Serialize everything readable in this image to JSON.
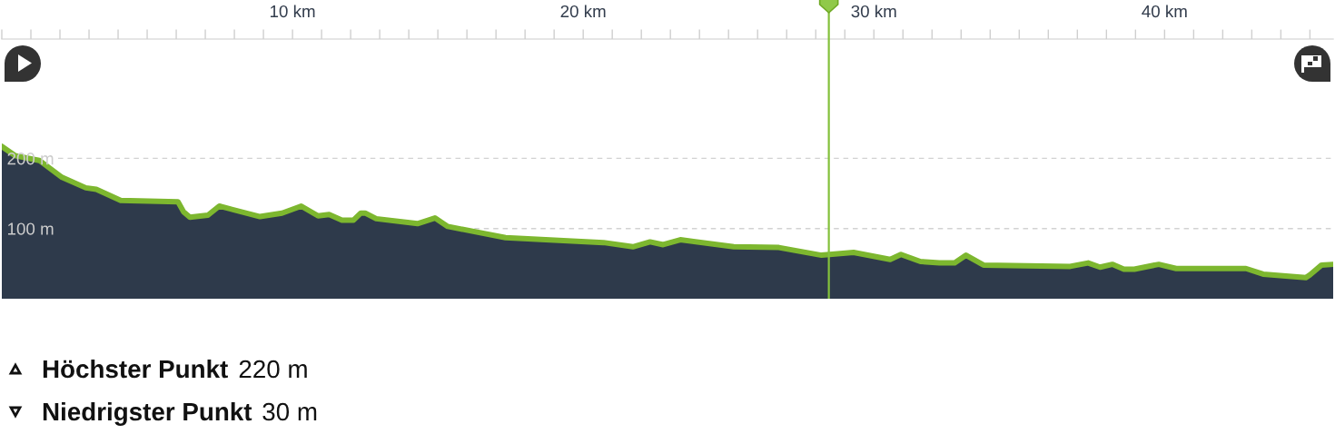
{
  "chart_data": {
    "type": "area",
    "x": [
      0,
      0.45,
      1.29,
      2.07,
      2.89,
      3.25,
      4.09,
      6.06,
      6.25,
      6.47,
      7.09,
      7.48,
      8.88,
      9.64,
      10.3,
      10.88,
      11.26,
      11.7,
      12.1,
      12.35,
      12.5,
      12.88,
      14.3,
      14.9,
      15.34,
      17.33,
      20.7,
      21.71,
      22.3,
      22.75,
      23.34,
      25.18,
      26.73,
      28.2,
      29.3,
      30.56,
      30.93,
      31.6,
      32.25,
      32.78,
      33.17,
      33.77,
      36.75,
      37.37,
      37.78,
      38.2,
      38.6,
      38.96,
      39.8,
      40.4,
      42.8,
      43.39,
      44.86,
      45.0,
      45.4,
      45.8
    ],
    "series": [
      {
        "color": "#2e3a4b",
        "values": [
          217,
          204,
          197,
          173,
          158,
          156,
          140,
          138,
          124,
          116,
          119,
          132,
          117,
          122,
          132,
          118,
          120,
          112,
          112,
          122,
          122,
          114,
          107,
          115,
          103,
          87,
          80,
          74,
          81,
          77,
          84,
          74,
          73,
          62,
          66,
          56,
          63,
          53,
          51,
          51,
          62,
          48,
          46,
          51,
          45,
          49,
          42,
          42,
          49,
          43,
          43,
          35,
          30,
          34,
          48,
          49
        ]
      }
    ],
    "xlim": [
      0,
      45.8
    ],
    "xticks": [
      {
        "value": 0,
        "label": null
      },
      {
        "value": 1,
        "label": null
      },
      {
        "value": 2,
        "label": null
      },
      {
        "value": 3,
        "label": null
      },
      {
        "value": 4,
        "label": null
      },
      {
        "value": 5,
        "label": null
      },
      {
        "value": 6,
        "label": null
      },
      {
        "value": 7,
        "label": null
      },
      {
        "value": 8,
        "label": null
      },
      {
        "value": 9,
        "label": null
      },
      {
        "value": 10,
        "label": "10 km"
      },
      {
        "value": 11,
        "label": null
      },
      {
        "value": 12,
        "label": null
      },
      {
        "value": 13,
        "label": null
      },
      {
        "value": 14,
        "label": null
      },
      {
        "value": 15,
        "label": null
      },
      {
        "value": 16,
        "label": null
      },
      {
        "value": 17,
        "label": null
      },
      {
        "value": 18,
        "label": null
      },
      {
        "value": 19,
        "label": null
      },
      {
        "value": 20,
        "label": "20 km"
      },
      {
        "value": 21,
        "label": null
      },
      {
        "value": 22,
        "label": null
      },
      {
        "value": 23,
        "label": null
      },
      {
        "value": 24,
        "label": null
      },
      {
        "value": 25,
        "label": null
      },
      {
        "value": 26,
        "label": null
      },
      {
        "value": 27,
        "label": null
      },
      {
        "value": 28,
        "label": null
      },
      {
        "value": 29,
        "label": null
      },
      {
        "value": 30,
        "label": "30 km"
      },
      {
        "value": 31,
        "label": null
      },
      {
        "value": 32,
        "label": null
      },
      {
        "value": 33,
        "label": null
      },
      {
        "value": 34,
        "label": null
      },
      {
        "value": 35,
        "label": null
      },
      {
        "value": 36,
        "label": null
      },
      {
        "value": 37,
        "label": null
      },
      {
        "value": 38,
        "label": null
      },
      {
        "value": 39,
        "label": null
      },
      {
        "value": 40,
        "label": "40 km"
      },
      {
        "value": 41,
        "label": null
      },
      {
        "value": 42,
        "label": null
      },
      {
        "value": 43,
        "label": null
      },
      {
        "value": 44,
        "label": null
      },
      {
        "value": 45,
        "label": null
      }
    ],
    "ylim": [
      0,
      370
    ],
    "yticks": [
      {
        "value": 100,
        "label": "100 m"
      },
      {
        "value": 200,
        "label": "200 m"
      }
    ],
    "grid": "y",
    "ref_lines": [
      {
        "axis": "x",
        "value": 28.45,
        "color": "#84c13c"
      }
    ],
    "annotations": [
      "Höchster Punkt",
      "220 m",
      "Niedrigster Punkt",
      "30 m"
    ]
  }
}
